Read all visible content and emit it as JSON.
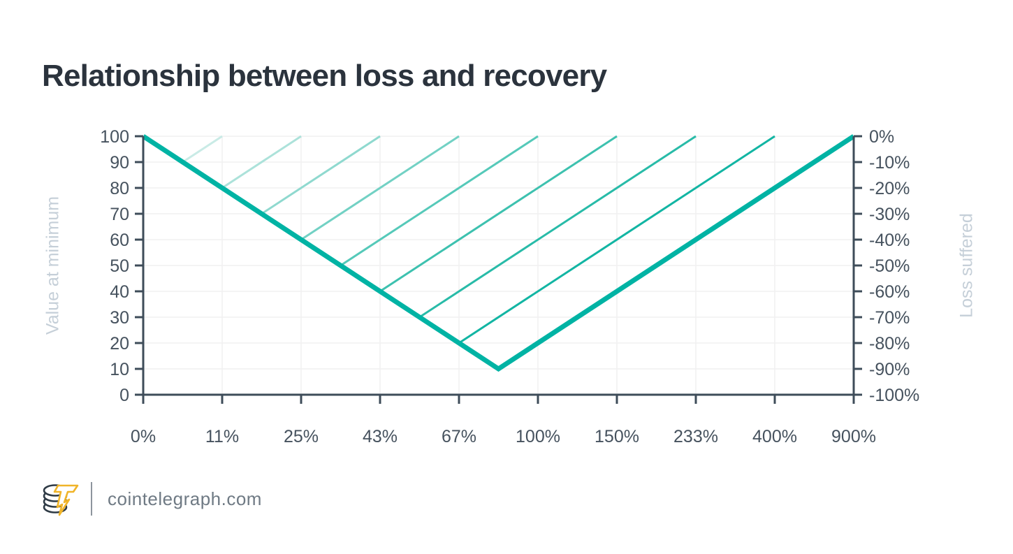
{
  "header": {
    "title": "Relationship between loss and recovery"
  },
  "footer": {
    "site_label": "cointelegraph.com",
    "logo_name": "cointelegraph-logo"
  },
  "colors": {
    "accent_teal": "#00b3a4",
    "axis": "#3e4c59",
    "tick_label": "#46525e",
    "axis_title": "#c5cfd8",
    "gridline": "#f1f0f1",
    "title_text": "#2b333d",
    "footer_text": "#6f7a84",
    "logo_gold": "#f0b429",
    "logo_dark": "#2e3a45"
  },
  "chart_data": {
    "type": "line",
    "title": "Relationship between loss and recovery",
    "grid": true,
    "ylim": [
      0,
      100
    ],
    "x_axis": {
      "tick_labels": [
        "0%",
        "11%",
        "25%",
        "43%",
        "67%",
        "100%",
        "150%",
        "233%",
        "400%",
        "900%"
      ]
    },
    "y_axis_left": {
      "label": "Value at minimum",
      "tick_labels": [
        "100",
        "90",
        "80",
        "70",
        "60",
        "50",
        "40",
        "30",
        "20",
        "10",
        "0"
      ]
    },
    "y_axis_right": {
      "label": "Loss suffered",
      "tick_labels": [
        "0%",
        "-10%",
        "-20%",
        "-30%",
        "-40%",
        "-50%",
        "-60%",
        "-70%",
        "-80%",
        "-90%",
        "-100%"
      ]
    },
    "main_line": {
      "color": "#00b3a4",
      "stroke_width": 7,
      "points": [
        {
          "x_index": 0,
          "value": 100
        },
        {
          "x_index": 4.5,
          "value": 10
        },
        {
          "x_index": 9,
          "value": 100
        }
      ]
    },
    "recovery_lines": {
      "stroke_width": 3,
      "to_value": 100,
      "lines": [
        {
          "loss_pct": 10,
          "recovery_label": "11%",
          "from": {
            "x_index": 0.5,
            "value": 90
          },
          "to_x_index": 1,
          "color": "#c9ebe6"
        },
        {
          "loss_pct": 20,
          "recovery_label": "25%",
          "from": {
            "x_index": 1.0,
            "value": 80
          },
          "to_x_index": 2,
          "color": "#ace2da"
        },
        {
          "loss_pct": 30,
          "recovery_label": "43%",
          "from": {
            "x_index": 1.5,
            "value": 70
          },
          "to_x_index": 3,
          "color": "#8fd9cf"
        },
        {
          "loss_pct": 40,
          "recovery_label": "67%",
          "from": {
            "x_index": 2.0,
            "value": 60
          },
          "to_x_index": 4,
          "color": "#72d1c4"
        },
        {
          "loss_pct": 50,
          "recovery_label": "100%",
          "from": {
            "x_index": 2.5,
            "value": 50
          },
          "to_x_index": 5,
          "color": "#55c9b9"
        },
        {
          "loss_pct": 60,
          "recovery_label": "150%",
          "from": {
            "x_index": 3.0,
            "value": 40
          },
          "to_x_index": 6,
          "color": "#3dc1af"
        },
        {
          "loss_pct": 70,
          "recovery_label": "233%",
          "from": {
            "x_index": 3.5,
            "value": 30
          },
          "to_x_index": 7,
          "color": "#28bba8"
        },
        {
          "loss_pct": 80,
          "recovery_label": "400%",
          "from": {
            "x_index": 4.0,
            "value": 20
          },
          "to_x_index": 8,
          "color": "#12b5a3"
        }
      ]
    }
  }
}
